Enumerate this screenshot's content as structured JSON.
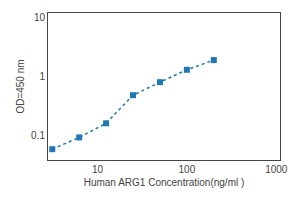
{
  "chart_data": {
    "type": "line",
    "xlabel": "Human ARG1 Concentration(ng/ml )",
    "ylabel": "OD=450 nm",
    "x": [
      3.125,
      6.25,
      12.5,
      25,
      50,
      100,
      200
    ],
    "values": [
      0.058,
      0.092,
      0.16,
      0.48,
      0.8,
      1.3,
      1.9
    ],
    "marker": "square",
    "line_style": "dotted",
    "log": true,
    "xlim": [
      2.8,
      1100
    ],
    "ylim": [
      0.038,
      12
    ],
    "xticks": [
      10,
      100,
      1000
    ],
    "yticks": [
      0.1,
      1,
      10
    ],
    "grid": false
  }
}
